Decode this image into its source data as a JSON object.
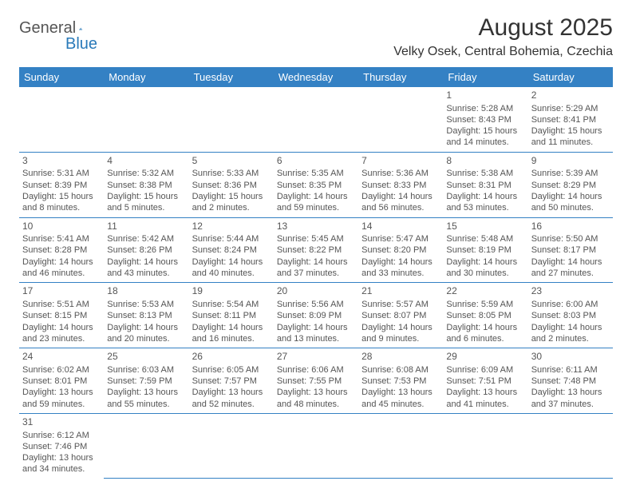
{
  "brand": {
    "part1": "General",
    "part2": "Blue"
  },
  "title": "August 2025",
  "location": "Velky Osek, Central Bohemia, Czechia",
  "header_bg": "#3481c4",
  "header_fg": "#ffffff",
  "cell_border": "#3481c4",
  "dayHeaders": [
    "Sunday",
    "Monday",
    "Tuesday",
    "Wednesday",
    "Thursday",
    "Friday",
    "Saturday"
  ],
  "weeks": [
    [
      null,
      null,
      null,
      null,
      null,
      {
        "n": "1",
        "sunrise": "Sunrise: 5:28 AM",
        "sunset": "Sunset: 8:43 PM",
        "day1": "Daylight: 15 hours",
        "day2": "and 14 minutes."
      },
      {
        "n": "2",
        "sunrise": "Sunrise: 5:29 AM",
        "sunset": "Sunset: 8:41 PM",
        "day1": "Daylight: 15 hours",
        "day2": "and 11 minutes."
      }
    ],
    [
      {
        "n": "3",
        "sunrise": "Sunrise: 5:31 AM",
        "sunset": "Sunset: 8:39 PM",
        "day1": "Daylight: 15 hours",
        "day2": "and 8 minutes."
      },
      {
        "n": "4",
        "sunrise": "Sunrise: 5:32 AM",
        "sunset": "Sunset: 8:38 PM",
        "day1": "Daylight: 15 hours",
        "day2": "and 5 minutes."
      },
      {
        "n": "5",
        "sunrise": "Sunrise: 5:33 AM",
        "sunset": "Sunset: 8:36 PM",
        "day1": "Daylight: 15 hours",
        "day2": "and 2 minutes."
      },
      {
        "n": "6",
        "sunrise": "Sunrise: 5:35 AM",
        "sunset": "Sunset: 8:35 PM",
        "day1": "Daylight: 14 hours",
        "day2": "and 59 minutes."
      },
      {
        "n": "7",
        "sunrise": "Sunrise: 5:36 AM",
        "sunset": "Sunset: 8:33 PM",
        "day1": "Daylight: 14 hours",
        "day2": "and 56 minutes."
      },
      {
        "n": "8",
        "sunrise": "Sunrise: 5:38 AM",
        "sunset": "Sunset: 8:31 PM",
        "day1": "Daylight: 14 hours",
        "day2": "and 53 minutes."
      },
      {
        "n": "9",
        "sunrise": "Sunrise: 5:39 AM",
        "sunset": "Sunset: 8:29 PM",
        "day1": "Daylight: 14 hours",
        "day2": "and 50 minutes."
      }
    ],
    [
      {
        "n": "10",
        "sunrise": "Sunrise: 5:41 AM",
        "sunset": "Sunset: 8:28 PM",
        "day1": "Daylight: 14 hours",
        "day2": "and 46 minutes."
      },
      {
        "n": "11",
        "sunrise": "Sunrise: 5:42 AM",
        "sunset": "Sunset: 8:26 PM",
        "day1": "Daylight: 14 hours",
        "day2": "and 43 minutes."
      },
      {
        "n": "12",
        "sunrise": "Sunrise: 5:44 AM",
        "sunset": "Sunset: 8:24 PM",
        "day1": "Daylight: 14 hours",
        "day2": "and 40 minutes."
      },
      {
        "n": "13",
        "sunrise": "Sunrise: 5:45 AM",
        "sunset": "Sunset: 8:22 PM",
        "day1": "Daylight: 14 hours",
        "day2": "and 37 minutes."
      },
      {
        "n": "14",
        "sunrise": "Sunrise: 5:47 AM",
        "sunset": "Sunset: 8:20 PM",
        "day1": "Daylight: 14 hours",
        "day2": "and 33 minutes."
      },
      {
        "n": "15",
        "sunrise": "Sunrise: 5:48 AM",
        "sunset": "Sunset: 8:19 PM",
        "day1": "Daylight: 14 hours",
        "day2": "and 30 minutes."
      },
      {
        "n": "16",
        "sunrise": "Sunrise: 5:50 AM",
        "sunset": "Sunset: 8:17 PM",
        "day1": "Daylight: 14 hours",
        "day2": "and 27 minutes."
      }
    ],
    [
      {
        "n": "17",
        "sunrise": "Sunrise: 5:51 AM",
        "sunset": "Sunset: 8:15 PM",
        "day1": "Daylight: 14 hours",
        "day2": "and 23 minutes."
      },
      {
        "n": "18",
        "sunrise": "Sunrise: 5:53 AM",
        "sunset": "Sunset: 8:13 PM",
        "day1": "Daylight: 14 hours",
        "day2": "and 20 minutes."
      },
      {
        "n": "19",
        "sunrise": "Sunrise: 5:54 AM",
        "sunset": "Sunset: 8:11 PM",
        "day1": "Daylight: 14 hours",
        "day2": "and 16 minutes."
      },
      {
        "n": "20",
        "sunrise": "Sunrise: 5:56 AM",
        "sunset": "Sunset: 8:09 PM",
        "day1": "Daylight: 14 hours",
        "day2": "and 13 minutes."
      },
      {
        "n": "21",
        "sunrise": "Sunrise: 5:57 AM",
        "sunset": "Sunset: 8:07 PM",
        "day1": "Daylight: 14 hours",
        "day2": "and 9 minutes."
      },
      {
        "n": "22",
        "sunrise": "Sunrise: 5:59 AM",
        "sunset": "Sunset: 8:05 PM",
        "day1": "Daylight: 14 hours",
        "day2": "and 6 minutes."
      },
      {
        "n": "23",
        "sunrise": "Sunrise: 6:00 AM",
        "sunset": "Sunset: 8:03 PM",
        "day1": "Daylight: 14 hours",
        "day2": "and 2 minutes."
      }
    ],
    [
      {
        "n": "24",
        "sunrise": "Sunrise: 6:02 AM",
        "sunset": "Sunset: 8:01 PM",
        "day1": "Daylight: 13 hours",
        "day2": "and 59 minutes."
      },
      {
        "n": "25",
        "sunrise": "Sunrise: 6:03 AM",
        "sunset": "Sunset: 7:59 PM",
        "day1": "Daylight: 13 hours",
        "day2": "and 55 minutes."
      },
      {
        "n": "26",
        "sunrise": "Sunrise: 6:05 AM",
        "sunset": "Sunset: 7:57 PM",
        "day1": "Daylight: 13 hours",
        "day2": "and 52 minutes."
      },
      {
        "n": "27",
        "sunrise": "Sunrise: 6:06 AM",
        "sunset": "Sunset: 7:55 PM",
        "day1": "Daylight: 13 hours",
        "day2": "and 48 minutes."
      },
      {
        "n": "28",
        "sunrise": "Sunrise: 6:08 AM",
        "sunset": "Sunset: 7:53 PM",
        "day1": "Daylight: 13 hours",
        "day2": "and 45 minutes."
      },
      {
        "n": "29",
        "sunrise": "Sunrise: 6:09 AM",
        "sunset": "Sunset: 7:51 PM",
        "day1": "Daylight: 13 hours",
        "day2": "and 41 minutes."
      },
      {
        "n": "30",
        "sunrise": "Sunrise: 6:11 AM",
        "sunset": "Sunset: 7:48 PM",
        "day1": "Daylight: 13 hours",
        "day2": "and 37 minutes."
      }
    ],
    [
      {
        "n": "31",
        "sunrise": "Sunrise: 6:12 AM",
        "sunset": "Sunset: 7:46 PM",
        "day1": "Daylight: 13 hours",
        "day2": "and 34 minutes."
      },
      null,
      null,
      null,
      null,
      null,
      null
    ]
  ]
}
